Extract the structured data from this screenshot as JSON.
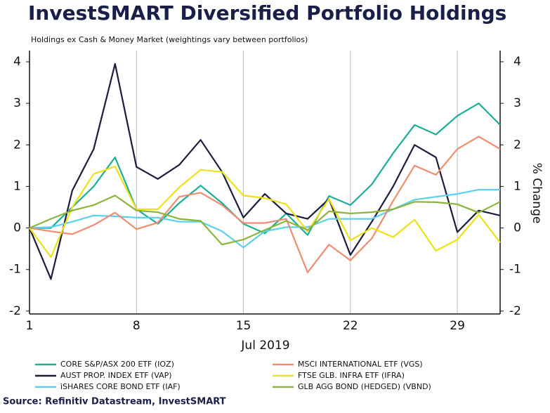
{
  "chart_data": {
    "type": "line",
    "title": "InvestSMART Diversified Portfolio Holdings",
    "subtitle": "Holdings ex Cash & Money Market (weightings vary between portfolios)",
    "x_label": "Jul 2019",
    "y2_label": "% Change",
    "source": "Source: Refinitiv Datastream, InvestSMART",
    "categories": [
      "1",
      null,
      null,
      null,
      null,
      "8",
      null,
      null,
      null,
      null,
      "15",
      null,
      null,
      null,
      null,
      "22",
      null,
      null,
      null,
      null,
      "29",
      null,
      null
    ],
    "ylim": [
      -2.07,
      4.27
    ],
    "yticks": [
      -2,
      -1,
      0,
      1,
      2,
      3,
      4
    ],
    "y2lim": [
      -2.07,
      4.27
    ],
    "y2ticks": [
      -2,
      -1,
      0,
      1,
      2,
      3,
      4
    ],
    "grid": "x",
    "series": [
      {
        "name": "CORE S&P/ASX 200 ETF (IOZ)",
        "color": "#1aae96",
        "values": [
          0,
          0,
          0.5,
          1.0,
          1.7,
          0.45,
          0.1,
          0.6,
          1.02,
          0.6,
          0.1,
          -0.13,
          0.35,
          -0.17,
          0.77,
          0.55,
          1.05,
          1.8,
          2.48,
          2.25,
          2.7,
          3.0,
          2.48
        ]
      },
      {
        "name": "AUST PROP. INDEX ETF (VAP)",
        "color": "#1c1c3c",
        "values": [
          0,
          -1.23,
          0.9,
          1.9,
          3.95,
          1.47,
          1.18,
          1.52,
          2.12,
          1.35,
          0.25,
          0.82,
          0.35,
          0.22,
          0.7,
          -0.65,
          0.15,
          1.0,
          2.0,
          1.7,
          -0.1,
          0.42,
          0.3
        ]
      },
      {
        "name": "iSHARES CORE BOND ETF (IAF)",
        "color": "#5bd0ec",
        "values": [
          0,
          0.02,
          0.15,
          0.3,
          0.28,
          0.25,
          0.25,
          0.15,
          0.15,
          -0.08,
          -0.47,
          -0.08,
          0.02,
          0.02,
          0.22,
          0.22,
          0.22,
          0.45,
          0.68,
          0.75,
          0.82,
          0.92,
          0.92
        ]
      },
      {
        "name": "MSCI INTERNATIONAL ETF (VGS)",
        "color": "#f08c70",
        "values": [
          0,
          -0.08,
          -0.15,
          0.07,
          0.37,
          -0.03,
          0.13,
          0.75,
          0.85,
          0.55,
          0.12,
          0.12,
          0.22,
          -1.07,
          -0.4,
          -0.78,
          -0.25,
          0.65,
          1.5,
          1.28,
          1.9,
          2.2,
          1.9
        ]
      },
      {
        "name": "FTSE GLB. INFRA ETF (IFRA)",
        "color": "#ede218",
        "values": [
          0,
          -0.7,
          0.5,
          1.3,
          1.48,
          0.45,
          0.45,
          0.98,
          1.4,
          1.35,
          0.78,
          0.72,
          0.57,
          -0.08,
          0.7,
          -0.3,
          0.0,
          -0.22,
          0.2,
          -0.55,
          -0.28,
          0.32,
          -0.35
        ]
      },
      {
        "name": "GLB AGG BOND (HEDGED) (VBND)",
        "color": "#8cb43c",
        "values": [
          0,
          0.22,
          0.42,
          0.55,
          0.78,
          0.42,
          0.38,
          0.22,
          0.17,
          -0.4,
          -0.28,
          -0.05,
          0.17,
          -0.05,
          0.4,
          0.35,
          0.38,
          0.45,
          0.63,
          0.62,
          0.57,
          0.37,
          0.63
        ]
      }
    ]
  }
}
